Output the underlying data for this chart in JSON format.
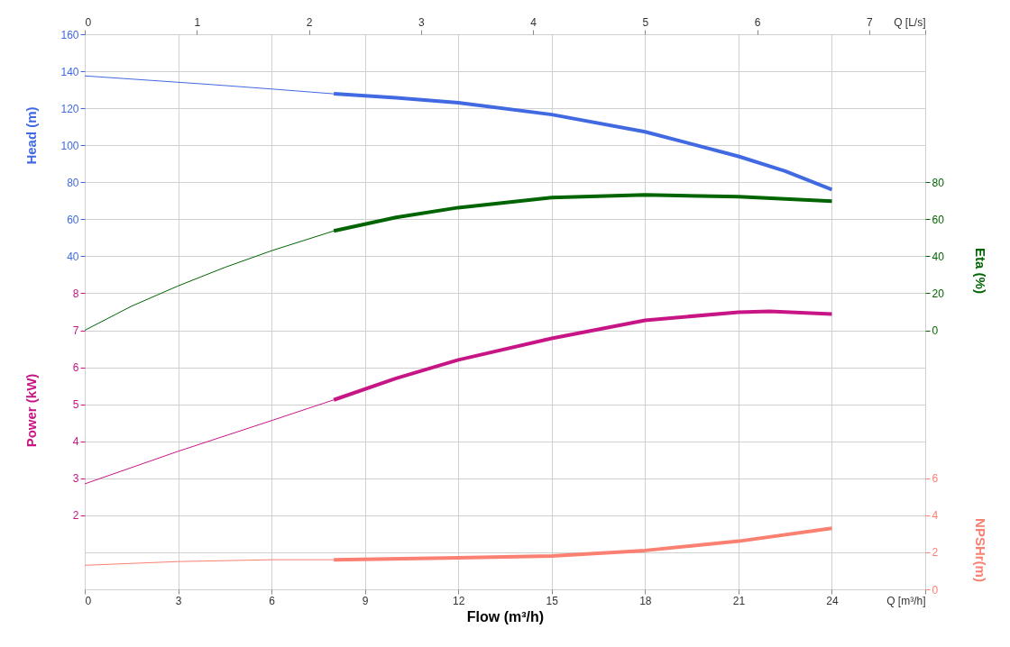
{
  "chart_data": [
    {
      "type": "line",
      "xlabel": "Flow (m³/h)",
      "ylabel": "Head (m)",
      "y2label": "Eta (%)",
      "xlim": [
        0,
        27
      ],
      "xticks": [
        0,
        3,
        6,
        9,
        12,
        15,
        18,
        21,
        24,
        {
          "value": 27,
          "label": "Q [m³/h]"
        }
      ],
      "x2lim": [
        0,
        7.5
      ],
      "x2ticks": [
        0,
        1,
        2,
        3,
        4,
        5,
        6,
        7,
        {
          "value": 7.5,
          "label": "Q [L/s]"
        }
      ],
      "ylim": [
        -140,
        160
      ],
      "yticks": [
        40,
        60,
        80,
        100,
        120,
        140,
        160
      ],
      "y2lim": [
        -140,
        160
      ],
      "y2ticks": [
        0,
        20,
        40,
        60,
        80
      ],
      "grid": true,
      "legend": false,
      "series": [
        {
          "color": "#4169e1",
          "x": [
            0,
            2,
            4,
            6,
            8
          ],
          "values": [
            137.5,
            135.2,
            132.9,
            130.4,
            127.8
          ]
        },
        {
          "color": "#4169e1",
          "x": [
            8,
            10,
            12,
            15,
            18,
            21,
            22.5,
            24
          ],
          "values": [
            127.8,
            125.7,
            123,
            116.6,
            107.3,
            94,
            86,
            76
          ]
        },
        {
          "axis": "y2",
          "color": "#006400",
          "x": [
            0,
            1.5,
            3,
            4.5,
            6,
            8
          ],
          "values": [
            0,
            13,
            24,
            34,
            43,
            53.7
          ]
        },
        {
          "axis": "y2",
          "color": "#006400",
          "x": [
            8,
            10,
            12,
            15,
            18,
            21,
            24
          ],
          "values": [
            53.7,
            61,
            66.3,
            71.7,
            73.2,
            72.2,
            69.8
          ]
        }
      ]
    },
    {
      "type": "line",
      "ylabel": "Power (kW)",
      "y2label": "NPSHr(m)",
      "xlim": [
        0,
        27
      ],
      "tick_labels": "y",
      "ylim": [
        0,
        15
      ],
      "yticks": [
        2,
        3,
        4,
        5,
        6,
        7,
        8
      ],
      "y2lim": [
        0,
        30
      ],
      "y2ticks": [
        0,
        2,
        4,
        6
      ],
      "grid": true,
      "legend": false,
      "series": [
        {
          "color": "#c71585",
          "x": [
            0,
            3,
            6,
            8
          ],
          "values": [
            2.85,
            3.73,
            4.56,
            5.12
          ]
        },
        {
          "color": "#c71585",
          "x": [
            8,
            10,
            12,
            15,
            18,
            21,
            22,
            24
          ],
          "values": [
            5.12,
            5.7,
            6.2,
            6.78,
            7.27,
            7.49,
            7.51,
            7.44
          ]
        },
        {
          "axis": "y2",
          "color": "#fa8072",
          "x": [
            0,
            3,
            6,
            8
          ],
          "values": [
            1.3,
            1.5,
            1.6,
            1.6
          ]
        },
        {
          "axis": "y2",
          "color": "#fa8072",
          "x": [
            8,
            12,
            15,
            18,
            21,
            24
          ],
          "values": [
            1.6,
            1.7,
            1.8,
            2.1,
            2.6,
            3.3
          ]
        }
      ]
    }
  ]
}
